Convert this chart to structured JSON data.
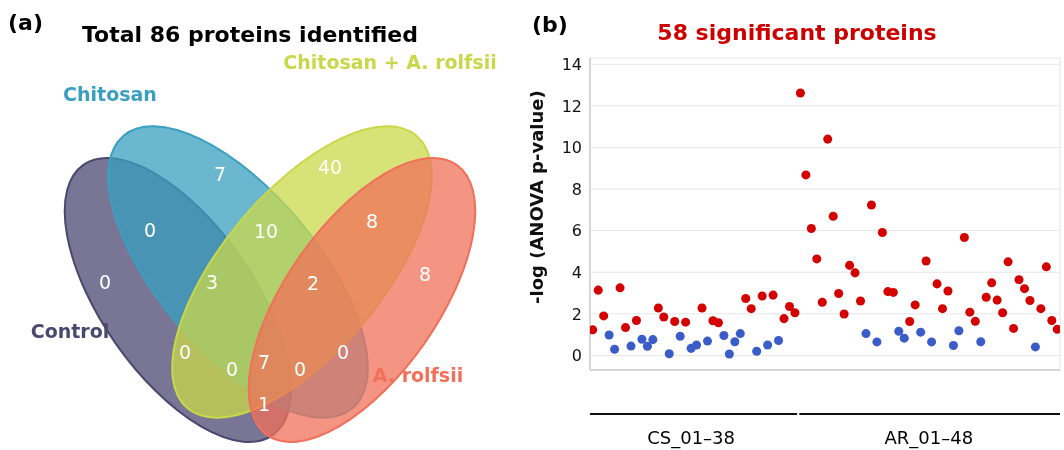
{
  "chart_data": [
    {
      "type": "other",
      "title": "Total 86 proteins identified",
      "categories": [
        "Control",
        "Chitosan",
        "Chitosan + A. rolfsii",
        "A. rolfsii"
      ],
      "colors": [
        "#4b4870",
        "#3a9fc0",
        "#c9d84a",
        "#f0705a"
      ],
      "annotations": [
        "(a)",
        "0",
        "7",
        "40",
        "8",
        "0",
        "10",
        "8",
        "3",
        "2",
        "7",
        "0",
        "0",
        "0",
        "0",
        "1"
      ]
    },
    {
      "type": "scatter",
      "title": "58 significant proteins",
      "ylabel": "-log (ANOVA p-value)",
      "categories": [
        null,
        null,
        null,
        null,
        null,
        null,
        null,
        null,
        null,
        null,
        null,
        null,
        null,
        null,
        null,
        null,
        null,
        null,
        null,
        null,
        null,
        null,
        null,
        null,
        null,
        null,
        null,
        null,
        null,
        null,
        null,
        null,
        null,
        null,
        null,
        null,
        null,
        null,
        null,
        null,
        null,
        null,
        null,
        null,
        null,
        null,
        null,
        null,
        null,
        null,
        null,
        null,
        null,
        null,
        null,
        null,
        null,
        null,
        null,
        null,
        null,
        null,
        null,
        null,
        null,
        null,
        null,
        null,
        null,
        null,
        null,
        null,
        null,
        null,
        null,
        null,
        null,
        null,
        null,
        null,
        null,
        null,
        null,
        null,
        null,
        null
      ],
      "series": [
        {
          "color": "#d40000",
          "values": [
            1.23,
            3.14,
            1.9,
            null,
            null,
            3.25,
            1.34,
            null,
            1.68,
            null,
            null,
            null,
            2.28,
            1.85,
            null,
            1.63,
            null,
            1.6,
            null,
            null,
            2.28,
            null,
            1.67,
            1.57,
            null,
            null,
            null,
            null,
            2.74,
            2.25,
            null,
            2.86,
            null,
            2.9,
            null,
            1.77,
            2.35,
            2.05,
            12.62,
            8.68,
            6.1,
            4.64,
            2.56,
            10.4,
            6.69,
            2.98,
            1.99,
            4.33,
            3.97,
            2.62,
            null,
            7.23,
            null,
            5.91,
            3.07,
            3.03,
            null,
            null,
            1.63,
            2.43,
            null,
            4.54,
            null,
            3.44,
            2.25,
            3.1,
            null,
            null,
            5.67,
            2.08,
            1.64,
            null,
            2.8,
            3.49,
            2.66,
            2.05,
            4.5,
            1.3,
            3.64,
            3.21,
            2.64,
            null,
            2.25,
            4.26,
            1.68,
            1.26
          ]
        },
        {
          "color": "#3a5cc8",
          "values": [
            null,
            null,
            null,
            0.98,
            0.3,
            null,
            null,
            0.45,
            null,
            0.78,
            0.44,
            0.76,
            null,
            null,
            0.08,
            null,
            0.92,
            null,
            0.34,
            0.5,
            null,
            0.69,
            null,
            null,
            0.96,
            0.07,
            0.66,
            1.05,
            null,
            null,
            0.2,
            null,
            0.5,
            null,
            0.72,
            null,
            null,
            null,
            null,
            null,
            null,
            null,
            null,
            null,
            null,
            null,
            null,
            null,
            null,
            null,
            1.05,
            null,
            0.65,
            null,
            null,
            null,
            1.16,
            0.83,
            null,
            null,
            1.12,
            null,
            0.65,
            null,
            null,
            null,
            0.48,
            1.19,
            null,
            null,
            null,
            0.66,
            null,
            null,
            null,
            null,
            null,
            null,
            null,
            null,
            null,
            0.41,
            null,
            null,
            null,
            null
          ]
        }
      ],
      "ylim": [
        -0.7,
        14.3
      ],
      "yticks": [
        0,
        2,
        4,
        6,
        8,
        10,
        12,
        14
      ],
      "grid": true,
      "marker": "circle",
      "annotations": [
        "(b)",
        "CS_01–38",
        "AR_01–48"
      ]
    }
  ]
}
